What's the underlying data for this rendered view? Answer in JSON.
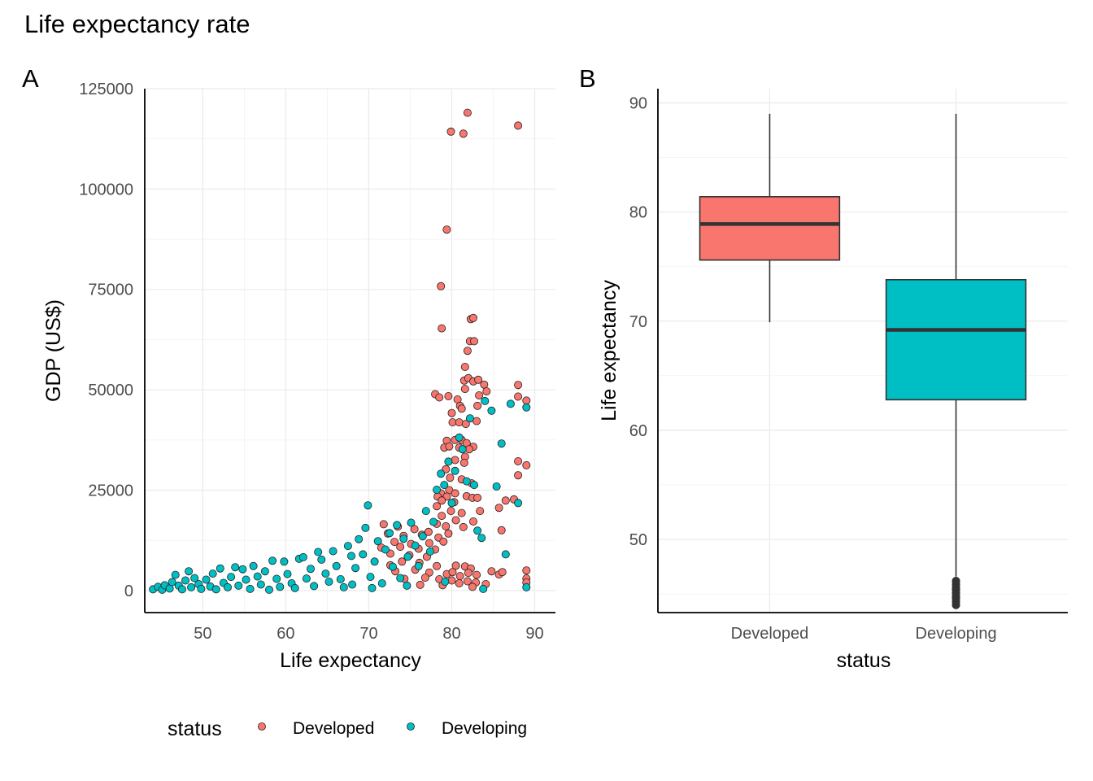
{
  "figure": {
    "title": "Life expectancy rate"
  },
  "colors": {
    "developed": "#F8766D",
    "developing": "#00BFC4",
    "outline": "#222222"
  },
  "legend": {
    "title": "status",
    "items": [
      {
        "label": "Developed",
        "color": "#F8766D"
      },
      {
        "label": "Developing",
        "color": "#00BFC4"
      }
    ]
  },
  "chart_data": [
    {
      "tag": "A",
      "type": "scatter",
      "xlabel": "Life expectancy",
      "ylabel": "GDP (US$)",
      "xlim": [
        43,
        92.5
      ],
      "ylim": [
        -5500,
        125000
      ],
      "xticks": [
        50,
        60,
        70,
        80,
        90
      ],
      "yticks": [
        0,
        25000,
        50000,
        75000,
        100000,
        125000
      ],
      "grid": true,
      "legend_position": "bottom",
      "series": [
        {
          "name": "Developed",
          "color": "#F8766D",
          "points": [
            [
              81.9,
              119000
            ],
            [
              79.9,
              114300
            ],
            [
              81.4,
              113800
            ],
            [
              88,
              115800
            ],
            [
              79.4,
              89900
            ],
            [
              78.7,
              75800
            ],
            [
              78.8,
              65300
            ],
            [
              82.3,
              67600
            ],
            [
              82.6,
              67900
            ],
            [
              82.2,
              62100
            ],
            [
              82.7,
              62100
            ],
            [
              81.9,
              59700
            ],
            [
              81.6,
              55700
            ],
            [
              81.5,
              52300
            ],
            [
              82,
              52900
            ],
            [
              82.6,
              52100
            ],
            [
              83.2,
              52500
            ],
            [
              83.9,
              51300
            ],
            [
              84.2,
              49600
            ],
            [
              88,
              51200
            ],
            [
              78,
              48900
            ],
            [
              78.5,
              48100
            ],
            [
              79.6,
              48400
            ],
            [
              80.7,
              47600
            ],
            [
              81.6,
              50200
            ],
            [
              83.3,
              48600
            ],
            [
              88,
              48300
            ],
            [
              89,
              47300
            ],
            [
              81,
              46000
            ],
            [
              83.1,
              46000
            ],
            [
              80,
              44200
            ],
            [
              81.2,
              45300
            ],
            [
              80.1,
              41900
            ],
            [
              80.9,
              41900
            ],
            [
              81.7,
              41500
            ],
            [
              83,
              42200
            ],
            [
              79.4,
              37300
            ],
            [
              80.4,
              37500
            ],
            [
              81.2,
              37500
            ],
            [
              81.8,
              36700
            ],
            [
              82.6,
              35800
            ],
            [
              79.1,
              35600
            ],
            [
              79.7,
              35900
            ],
            [
              80.9,
              35600
            ],
            [
              82.1,
              35200
            ],
            [
              80.4,
              32500
            ],
            [
              81.6,
              33300
            ],
            [
              88,
              32200
            ],
            [
              89,
              31200
            ],
            [
              79.3,
              30200
            ],
            [
              81.5,
              31800
            ],
            [
              79.8,
              28100
            ],
            [
              81.2,
              27700
            ],
            [
              82.4,
              26700
            ],
            [
              88,
              28700
            ],
            [
              79.7,
              25000
            ],
            [
              80.4,
              24200
            ],
            [
              81.8,
              23500
            ],
            [
              82.5,
              23100
            ],
            [
              83.1,
              23100
            ],
            [
              78.7,
              24200
            ],
            [
              78.3,
              23400
            ],
            [
              79.4,
              23400
            ],
            [
              78.8,
              22400
            ],
            [
              80.3,
              22000
            ],
            [
              86.5,
              22400
            ],
            [
              87.5,
              22700
            ],
            [
              78.2,
              21000
            ],
            [
              79.9,
              19800
            ],
            [
              81.2,
              19300
            ],
            [
              83.4,
              19800
            ],
            [
              85.7,
              20600
            ],
            [
              78.8,
              18600
            ],
            [
              80.5,
              17500
            ],
            [
              82.6,
              17200
            ],
            [
              78.2,
              16600
            ],
            [
              79.3,
              16000
            ],
            [
              81.4,
              15800
            ],
            [
              86,
              15000
            ],
            [
              71.8,
              16500
            ],
            [
              73.5,
              15900
            ],
            [
              75.5,
              15300
            ],
            [
              77.2,
              14600
            ],
            [
              79.6,
              14200
            ],
            [
              72.3,
              14200
            ],
            [
              74.2,
              13600
            ],
            [
              76.4,
              13900
            ],
            [
              78.4,
              13200
            ],
            [
              73.1,
              12100
            ],
            [
              75.1,
              11600
            ],
            [
              77.3,
              11800
            ],
            [
              79,
              12200
            ],
            [
              71.5,
              10700
            ],
            [
              73.8,
              10900
            ],
            [
              76,
              10400
            ],
            [
              78,
              10200
            ],
            [
              72.6,
              9200
            ],
            [
              74.9,
              8800
            ],
            [
              77,
              8400
            ],
            [
              74,
              7200
            ],
            [
              76.1,
              6900
            ],
            [
              72.6,
              6300
            ],
            [
              78.2,
              6100
            ],
            [
              73.2,
              4800
            ],
            [
              75.6,
              5200
            ],
            [
              77.3,
              4500
            ],
            [
              80.5,
              6200
            ],
            [
              81.6,
              6000
            ],
            [
              82.3,
              5500
            ],
            [
              79.4,
              4100
            ],
            [
              80.1,
              4600
            ],
            [
              81,
              3600
            ],
            [
              82,
              4400
            ],
            [
              83,
              3900
            ],
            [
              84.8,
              4800
            ],
            [
              85.7,
              4000
            ],
            [
              86.1,
              4600
            ],
            [
              89,
              5000
            ],
            [
              74.3,
              2900
            ],
            [
              76.8,
              3200
            ],
            [
              78.5,
              2800
            ],
            [
              80,
              2500
            ],
            [
              80.9,
              1800
            ],
            [
              81.9,
              2300
            ],
            [
              82.9,
              2000
            ],
            [
              84.1,
              1600
            ],
            [
              89,
              3000
            ],
            [
              76.2,
              1400
            ],
            [
              78.9,
              1300
            ],
            [
              82.5,
              900
            ],
            [
              89,
              2000
            ]
          ]
        },
        {
          "name": "Developing",
          "color": "#00BFC4",
          "points": [
            [
              44,
              300
            ],
            [
              44.6,
              900
            ],
            [
              45.1,
              200
            ],
            [
              45.4,
              1300
            ],
            [
              46,
              500
            ],
            [
              46.3,
              2100
            ],
            [
              46.7,
              3900
            ],
            [
              47.1,
              1200
            ],
            [
              47.5,
              300
            ],
            [
              47.9,
              2500
            ],
            [
              48.3,
              4800
            ],
            [
              48.6,
              800
            ],
            [
              49,
              3100
            ],
            [
              49.5,
              1600
            ],
            [
              49.8,
              400
            ],
            [
              50.4,
              2700
            ],
            [
              50.9,
              1000
            ],
            [
              51.2,
              4200
            ],
            [
              51.6,
              300
            ],
            [
              52.1,
              5500
            ],
            [
              52.5,
              1900
            ],
            [
              53,
              800
            ],
            [
              53.4,
              3400
            ],
            [
              53.9,
              5800
            ],
            [
              54.3,
              1200
            ],
            [
              54.8,
              5300
            ],
            [
              55.2,
              2700
            ],
            [
              55.7,
              400
            ],
            [
              56.1,
              6100
            ],
            [
              56.6,
              3500
            ],
            [
              57,
              1500
            ],
            [
              57.5,
              4800
            ],
            [
              58,
              200
            ],
            [
              58.4,
              7400
            ],
            [
              58.9,
              2900
            ],
            [
              59.3,
              900
            ],
            [
              59.8,
              7200
            ],
            [
              60.2,
              4100
            ],
            [
              60.7,
              1800
            ],
            [
              61.1,
              600
            ],
            [
              61.6,
              7900
            ],
            [
              62.1,
              8300
            ],
            [
              62.5,
              3000
            ],
            [
              63,
              5400
            ],
            [
              63.4,
              1100
            ],
            [
              63.9,
              9600
            ],
            [
              64.3,
              7700
            ],
            [
              64.8,
              4200
            ],
            [
              65.2,
              2200
            ],
            [
              65.7,
              9800
            ],
            [
              66.1,
              6100
            ],
            [
              66.6,
              2800
            ],
            [
              67,
              800
            ],
            [
              67.5,
              11100
            ],
            [
              67.9,
              8600
            ],
            [
              68.4,
              5600
            ],
            [
              68.8,
              12800
            ],
            [
              69.3,
              9000
            ],
            [
              69.6,
              15600
            ],
            [
              69.9,
              21200
            ],
            [
              70.2,
              3400
            ],
            [
              70.7,
              7200
            ],
            [
              71.1,
              12300
            ],
            [
              71.6,
              1800
            ],
            [
              72,
              10200
            ],
            [
              72.5,
              14300
            ],
            [
              72.9,
              5900
            ],
            [
              73.4,
              16300
            ],
            [
              73.8,
              3100
            ],
            [
              74.2,
              12900
            ],
            [
              74.7,
              8400
            ],
            [
              75.1,
              16900
            ],
            [
              75.6,
              11200
            ],
            [
              76,
              6100
            ],
            [
              76.5,
              13500
            ],
            [
              76.9,
              19800
            ],
            [
              77.4,
              9700
            ],
            [
              77.8,
              17100
            ],
            [
              78.2,
              25100
            ],
            [
              78.7,
              29100
            ],
            [
              79.1,
              26300
            ],
            [
              79.6,
              32100
            ],
            [
              80,
              21800
            ],
            [
              80.4,
              29800
            ],
            [
              80.9,
              38100
            ],
            [
              81.3,
              35200
            ],
            [
              81.8,
              27200
            ],
            [
              82.2,
              42900
            ],
            [
              82.7,
              26300
            ],
            [
              83.1,
              14900
            ],
            [
              83.6,
              13100
            ],
            [
              84,
              47200
            ],
            [
              84.8,
              44800
            ],
            [
              85.4,
              25900
            ],
            [
              86,
              36600
            ],
            [
              86.5,
              9000
            ],
            [
              87.1,
              46500
            ],
            [
              88,
              21800
            ],
            [
              89,
              45600
            ],
            [
              89,
              800
            ],
            [
              83.8,
              400
            ],
            [
              79.2,
              2200
            ],
            [
              74.6,
              1200
            ],
            [
              70.4,
              600
            ],
            [
              68,
              1500
            ]
          ]
        }
      ]
    },
    {
      "tag": "B",
      "type": "box",
      "xlabel": "status",
      "ylabel": "Life expectancy",
      "categories": [
        "Developed",
        "Developing"
      ],
      "ylim": [
        43.3,
        91.3
      ],
      "yticks": [
        50,
        60,
        70,
        80,
        90
      ],
      "grid": true,
      "boxes": [
        {
          "category": "Developed",
          "color": "#F8766D",
          "whisker_low": 69.9,
          "q1": 75.6,
          "median": 78.9,
          "q3": 81.4,
          "whisker_high": 89
        },
        {
          "category": "Developing",
          "color": "#00BFC4",
          "whisker_low": 46.6,
          "q1": 62.8,
          "median": 69.2,
          "q3": 73.8,
          "whisker_high": 89,
          "outliers": [
            44,
            44.3,
            44.6,
            44.8,
            45.1,
            45.4,
            45.6,
            45.9,
            46.2
          ]
        }
      ]
    }
  ]
}
